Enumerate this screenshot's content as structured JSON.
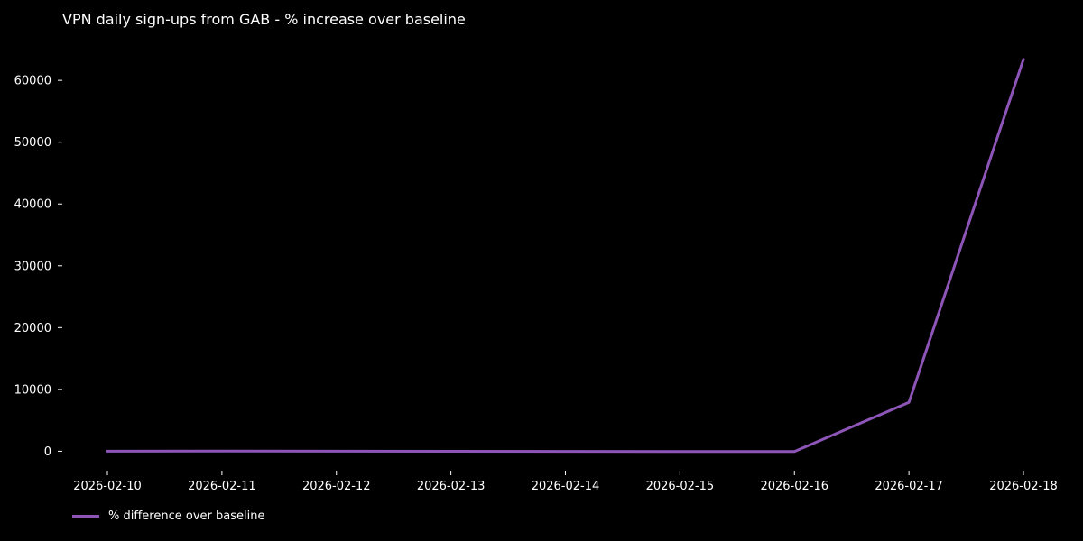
{
  "chart_data": {
    "type": "line",
    "title": "VPN daily sign-ups from GAB - % increase over baseline",
    "xlabel": "",
    "ylabel": "",
    "x": [
      "2026-02-10",
      "2026-02-11",
      "2026-02-12",
      "2026-02-13",
      "2026-02-14",
      "2026-02-15",
      "2026-02-16",
      "2026-02-17",
      "2026-02-18"
    ],
    "series": [
      {
        "name": "% difference over baseline",
        "color": "#8e55b8",
        "values": [
          0,
          20,
          10,
          -10,
          -20,
          -50,
          -40,
          7900,
          63400
        ]
      }
    ],
    "ylim": [
      -3000,
      66000
    ],
    "yticks": [
      0,
      10000,
      20000,
      30000,
      40000,
      50000,
      60000
    ],
    "grid": false,
    "legend": "bottom-left"
  }
}
